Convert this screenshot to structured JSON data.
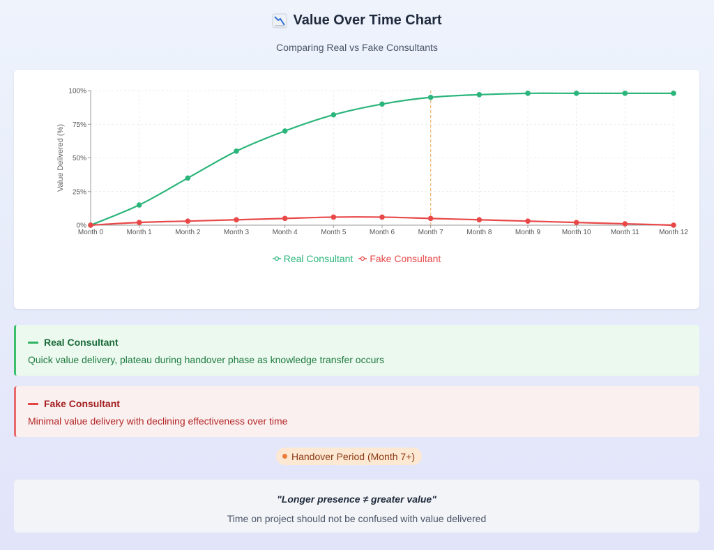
{
  "header": {
    "icon": "chart-decreasing-icon",
    "title": "Value Over Time Chart",
    "subtitle": "Comparing Real vs Fake Consultants"
  },
  "colors": {
    "real": "#2bb57b",
    "fake": "#e84848",
    "handover": "#f2b26a"
  },
  "chart_data": {
    "type": "line",
    "x": [
      "Month 0",
      "Month 1",
      "Month 2",
      "Month 3",
      "Month 4",
      "Month 5",
      "Month 6",
      "Month 7",
      "Month 8",
      "Month 9",
      "Month 10",
      "Month 11",
      "Month 12"
    ],
    "series": [
      {
        "name": "Real Consultant",
        "values": [
          0,
          15,
          35,
          55,
          70,
          82,
          90,
          95,
          97,
          98,
          98,
          98,
          98
        ]
      },
      {
        "name": "Fake Consultant",
        "values": [
          0,
          2,
          3,
          4,
          5,
          6,
          6,
          5,
          4,
          3,
          2,
          1,
          0
        ]
      }
    ],
    "title": "",
    "xlabel": "",
    "ylabel": "Value Delivered (%)",
    "ylim": [
      0,
      100
    ],
    "yticks": [
      "0%",
      "25%",
      "50%",
      "75%",
      "100%"
    ],
    "ytick_values": [
      0,
      25,
      50,
      75,
      100
    ],
    "reference_line": {
      "x": "Month 7"
    },
    "grid": true,
    "legend": "bottom"
  },
  "legend": {
    "real_label": "Real Consultant",
    "fake_label": "Fake Consultant"
  },
  "info": {
    "real": {
      "title": "Real Consultant",
      "description": "Quick value delivery, plateau during handover phase as knowledge transfer occurs"
    },
    "fake": {
      "title": "Fake Consultant",
      "description": "Minimal value delivery with declining effectiveness over time"
    }
  },
  "handover": {
    "label": "Handover Period (Month 7+)"
  },
  "quote": {
    "text": "\"Longer presence ≠ greater value\"",
    "subtext": "Time on project should not be confused with value delivered"
  }
}
